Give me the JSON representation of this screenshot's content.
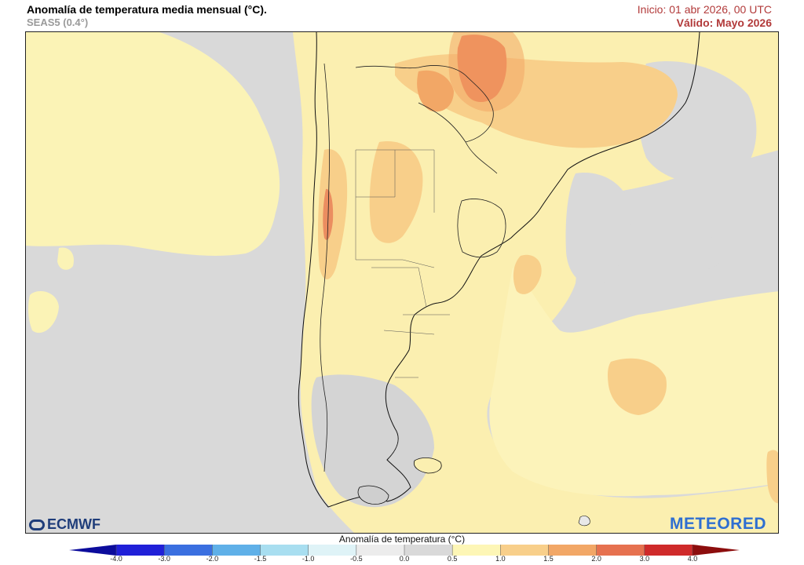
{
  "header": {
    "title": "Anomalía de temperatura media mensual (°C).",
    "model": "SEAS5 (0.4°)",
    "init": "Inicio: 01 abr 2026, 00 UTC",
    "valid": "Válido: Mayo 2026"
  },
  "logos": {
    "left": "ECMWF",
    "right": "METEORED"
  },
  "colorbar": {
    "title": "Anomalía de temperatura (°C)",
    "ticks": [
      "-4.0",
      "-3.0",
      "-2.0",
      "-1.5",
      "-1.0",
      "-0.5",
      "0.0",
      "0.5",
      "1.0",
      "1.5",
      "2.0",
      "3.0",
      "4.0"
    ],
    "colors": [
      "#2020d8",
      "#3a6fe0",
      "#5fb0e8",
      "#a8def0",
      "#dff3f7",
      "#ececec",
      "#d9d9d9",
      "#fdf6b6",
      "#f8cf8a",
      "#f2a766",
      "#e6714f",
      "#cf2a2a"
    ],
    "extend_low_color": "#0c0c9c",
    "extend_high_color": "#8c0d0d"
  },
  "map": {
    "region": "South America (southern cone)",
    "ocean_neutral_color": "#d9d9d9",
    "land_warm_color": "#fbefb0"
  }
}
